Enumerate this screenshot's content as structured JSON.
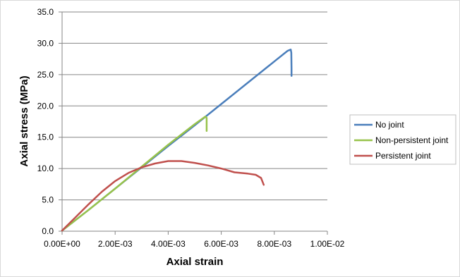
{
  "chart_data": {
    "type": "line",
    "title": "",
    "xlabel": "Axial strain",
    "ylabel": "Axial stress (MPa)",
    "xlim": [
      0,
      0.01
    ],
    "ylim": [
      0,
      35
    ],
    "xticks": [
      0,
      0.002,
      0.004,
      0.006,
      0.008,
      0.01
    ],
    "xtick_labels": [
      "0.00E+00",
      "2.00E-03",
      "4.00E-03",
      "6.00E-03",
      "8.00E-03",
      "1.00E-02"
    ],
    "yticks": [
      0,
      5,
      10,
      15,
      20,
      25,
      30,
      35
    ],
    "ytick_labels": [
      "0.0",
      "5.0",
      "10.0",
      "15.0",
      "20.0",
      "25.0",
      "30.0",
      "35.0"
    ],
    "grid": "horizontal",
    "legend_position": "right",
    "series": [
      {
        "name": "No joint",
        "color": "#4a7ebb",
        "points": [
          [
            0,
            0.1
          ],
          [
            0.001,
            3.4
          ],
          [
            0.002,
            6.8
          ],
          [
            0.003,
            10.2
          ],
          [
            0.004,
            13.6
          ],
          [
            0.005,
            16.9
          ],
          [
            0.006,
            20.3
          ],
          [
            0.007,
            23.7
          ],
          [
            0.008,
            27.1
          ],
          [
            0.0085,
            28.8
          ],
          [
            0.00862,
            29.0
          ],
          [
            0.00864,
            28.5
          ],
          [
            0.00865,
            26.0
          ],
          [
            0.00865,
            24.8
          ]
        ]
      },
      {
        "name": "Non-persistent joint",
        "color": "#98c34b",
        "points": [
          [
            0,
            0.1
          ],
          [
            0.001,
            3.4
          ],
          [
            0.002,
            6.8
          ],
          [
            0.003,
            10.3
          ],
          [
            0.004,
            13.8
          ],
          [
            0.005,
            17.1
          ],
          [
            0.0054,
            18.3
          ],
          [
            0.00545,
            18.1
          ],
          [
            0.00545,
            16.0
          ]
        ]
      },
      {
        "name": "Persistent joint",
        "color": "#c0504d",
        "points": [
          [
            0,
            0.1
          ],
          [
            0.0005,
            2.2
          ],
          [
            0.001,
            4.3
          ],
          [
            0.0015,
            6.3
          ],
          [
            0.002,
            8.0
          ],
          [
            0.0025,
            9.3
          ],
          [
            0.003,
            10.2
          ],
          [
            0.0035,
            10.8
          ],
          [
            0.004,
            11.2
          ],
          [
            0.0045,
            11.2
          ],
          [
            0.005,
            10.9
          ],
          [
            0.0055,
            10.5
          ],
          [
            0.006,
            10.0
          ],
          [
            0.0065,
            9.4
          ],
          [
            0.007,
            9.2
          ],
          [
            0.0073,
            9.0
          ],
          [
            0.0075,
            8.5
          ],
          [
            0.0076,
            7.4
          ]
        ]
      }
    ]
  }
}
